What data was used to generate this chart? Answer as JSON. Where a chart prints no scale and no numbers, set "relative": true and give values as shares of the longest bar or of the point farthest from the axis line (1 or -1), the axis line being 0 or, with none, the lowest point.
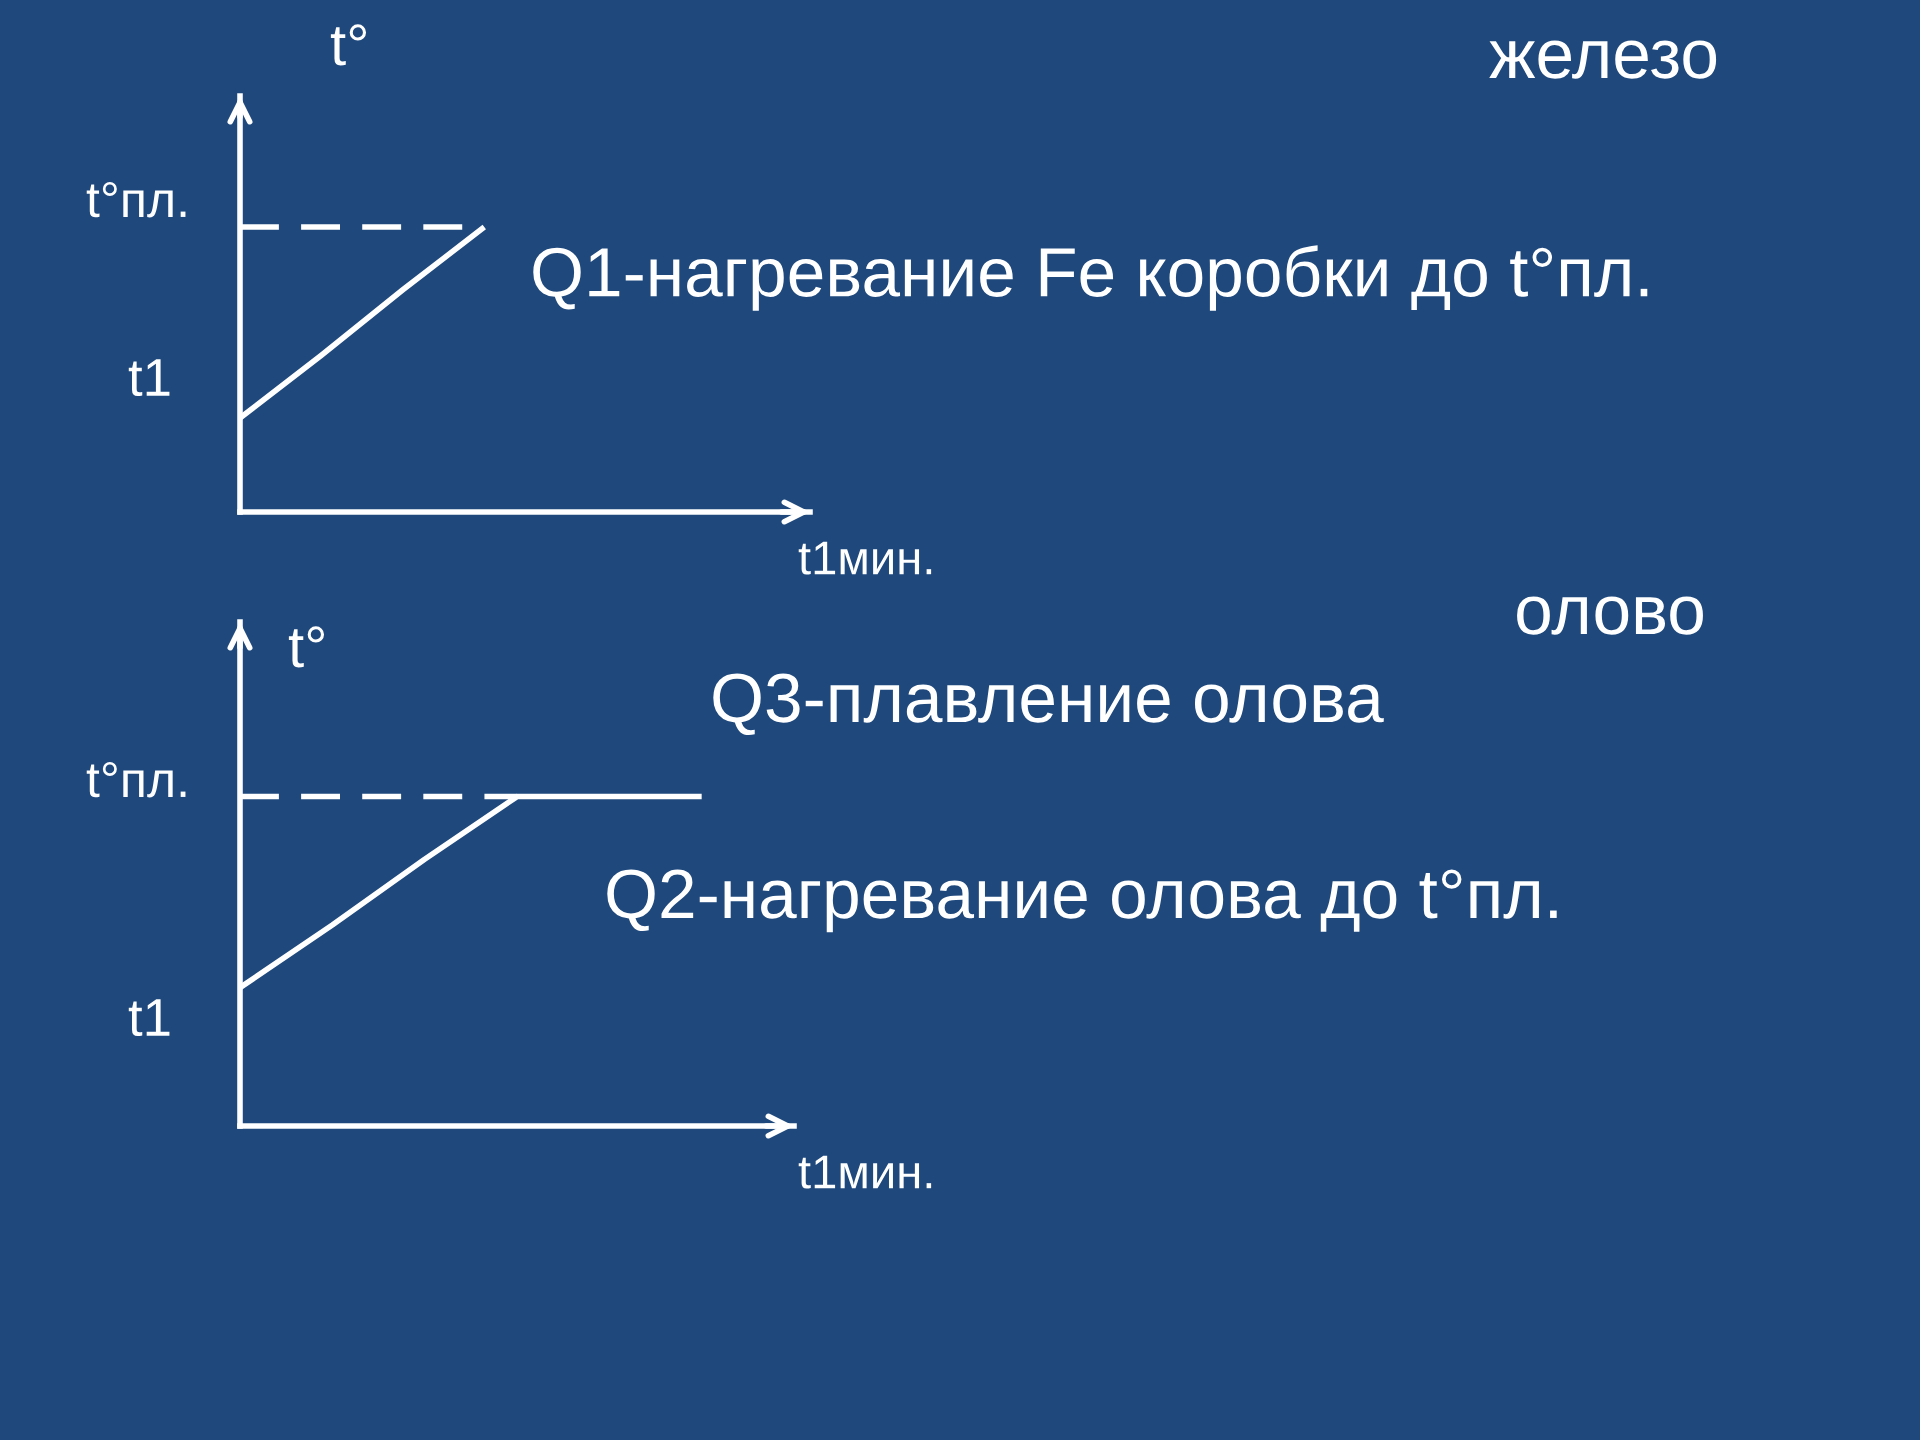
{
  "chart_data": [
    {
      "type": "line",
      "ylabel": "t°",
      "xlabel": "t1мин.",
      "relative": true,
      "categories": [
        null,
        null,
        null,
        null,
        null,
        null,
        null,
        null
      ],
      "series": [
        {
          "color": "#ffffff",
          "values": [
            0.33,
            0.55,
            0.78,
            1,
            null,
            null,
            null,
            null
          ]
        },
        {
          "color": "#ffffff",
          "line_style": "dashed",
          "values": [
            1,
            1,
            1,
            1,
            null,
            null,
            null,
            null
          ]
        }
      ],
      "annotations": [
        "железо",
        "t°пл.",
        "t1",
        "Q1-нагревание Fe коробки до t°пл."
      ]
    },
    {
      "type": "line",
      "ylabel": "t°",
      "xlabel": "t1мин.",
      "relative": true,
      "categories": [
        null,
        null,
        null,
        null,
        null,
        null,
        null
      ],
      "series": [
        {
          "color": "#ffffff",
          "values": [
            0.42,
            0.61,
            0.81,
            1,
            1,
            1,
            null
          ]
        },
        {
          "color": "#ffffff",
          "line_style": "dashed",
          "values": [
            1,
            1,
            1,
            1,
            null,
            null,
            null
          ]
        }
      ],
      "annotations": [
        "олово",
        "t°пл.",
        "t1",
        "Q3-плавление олова",
        "Q2-нагревание олова до t°пл."
      ]
    }
  ]
}
